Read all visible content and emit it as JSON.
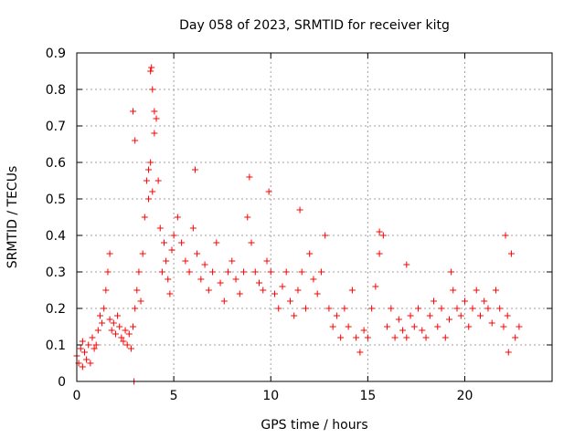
{
  "chart_data": {
    "type": "scatter",
    "title": "Day 058 of 2023, SRMTID for receiver kitg",
    "xlabel": "GPS time / hours",
    "ylabel": "SRMTID / TECUs",
    "xlim": [
      0,
      24.5
    ],
    "ylim": [
      0,
      0.9
    ],
    "xticks": [
      0,
      5,
      10,
      15,
      20
    ],
    "yticks": [
      0,
      0.1,
      0.2,
      0.3,
      0.4,
      0.5,
      0.6,
      0.7,
      0.8,
      0.9
    ],
    "xtick_labels": [
      "0",
      "5",
      "10",
      "15",
      "20"
    ],
    "ytick_labels": [
      "0",
      "0.1",
      "0.2",
      "0.3",
      "0.4",
      "0.5",
      "0.6",
      "0.7",
      "0.8",
      "0.9"
    ],
    "grid": true,
    "marker": "plus",
    "color": "#ff0000",
    "series": [
      {
        "name": "SRMTID",
        "x": [
          0.0,
          0.1,
          0.2,
          0.3,
          0.4,
          0.5,
          0.6,
          0.7,
          0.8,
          0.9,
          1.0,
          1.1,
          1.2,
          1.3,
          1.4,
          1.5,
          1.6,
          1.7,
          1.8,
          1.9,
          2.0,
          2.1,
          2.2,
          2.3,
          2.4,
          2.5,
          2.6,
          2.7,
          2.8,
          2.9,
          3.0,
          3.1,
          3.2,
          3.3,
          3.4,
          3.5,
          3.6,
          3.7,
          3.8,
          3.9,
          4.0,
          4.1,
          4.2,
          4.3,
          4.4,
          4.5,
          4.6,
          4.7,
          4.8,
          4.9,
          5.0,
          5.2,
          5.4,
          5.6,
          5.8,
          6.0,
          6.2,
          6.4,
          6.6,
          6.8,
          7.0,
          7.2,
          7.4,
          7.6,
          7.8,
          8.0,
          8.2,
          8.4,
          8.6,
          8.8,
          9.0,
          9.2,
          9.4,
          9.6,
          9.8,
          10.0,
          10.2,
          10.4,
          10.6,
          10.8,
          11.0,
          11.2,
          11.4,
          11.6,
          11.8,
          12.0,
          12.2,
          12.4,
          12.6,
          12.8,
          13.0,
          13.2,
          13.4,
          13.6,
          13.8,
          14.0,
          14.2,
          14.4,
          14.6,
          14.8,
          15.0,
          15.2,
          15.4,
          15.6,
          15.8,
          16.0,
          16.2,
          16.4,
          16.6,
          16.8,
          17.0,
          17.2,
          17.4,
          17.6,
          17.8,
          18.0,
          18.2,
          18.4,
          18.6,
          18.8,
          19.0,
          19.2,
          19.4,
          19.6,
          19.8,
          20.0,
          20.2,
          20.4,
          20.6,
          20.8,
          21.0,
          21.2,
          21.4,
          21.6,
          21.8,
          22.0,
          22.2,
          22.4,
          22.6,
          22.8,
          2.9,
          3.0,
          3.7,
          3.8,
          3.9,
          4.0,
          3.85,
          8.9,
          9.9,
          15.6,
          22.1,
          22.25,
          0.3,
          1.7,
          6.1,
          11.5,
          17.0,
          19.3,
          2.95
        ],
        "y": [
          0.07,
          0.05,
          0.09,
          0.04,
          0.08,
          0.06,
          0.1,
          0.05,
          0.12,
          0.09,
          0.1,
          0.14,
          0.18,
          0.16,
          0.2,
          0.25,
          0.3,
          0.17,
          0.14,
          0.16,
          0.13,
          0.18,
          0.15,
          0.12,
          0.11,
          0.14,
          0.1,
          0.13,
          0.09,
          0.15,
          0.2,
          0.25,
          0.3,
          0.22,
          0.35,
          0.45,
          0.55,
          0.5,
          0.6,
          0.52,
          0.68,
          0.72,
          0.55,
          0.42,
          0.3,
          0.38,
          0.33,
          0.28,
          0.24,
          0.36,
          0.4,
          0.45,
          0.38,
          0.33,
          0.3,
          0.42,
          0.35,
          0.28,
          0.32,
          0.25,
          0.3,
          0.38,
          0.27,
          0.22,
          0.3,
          0.33,
          0.28,
          0.24,
          0.3,
          0.45,
          0.38,
          0.3,
          0.27,
          0.25,
          0.33,
          0.3,
          0.24,
          0.2,
          0.26,
          0.3,
          0.22,
          0.18,
          0.25,
          0.3,
          0.2,
          0.35,
          0.28,
          0.24,
          0.3,
          0.4,
          0.2,
          0.15,
          0.18,
          0.12,
          0.2,
          0.15,
          0.25,
          0.12,
          0.08,
          0.14,
          0.12,
          0.2,
          0.26,
          0.35,
          0.4,
          0.15,
          0.2,
          0.12,
          0.17,
          0.14,
          0.12,
          0.18,
          0.15,
          0.2,
          0.14,
          0.12,
          0.18,
          0.22,
          0.15,
          0.2,
          0.12,
          0.17,
          0.25,
          0.2,
          0.18,
          0.22,
          0.15,
          0.2,
          0.25,
          0.18,
          0.22,
          0.2,
          0.16,
          0.25,
          0.2,
          0.15,
          0.18,
          0.35,
          0.12,
          0.15,
          0.74,
          0.66,
          0.58,
          0.85,
          0.8,
          0.74,
          0.86,
          0.56,
          0.52,
          0.41,
          0.4,
          0.08,
          0.11,
          0.35,
          0.58,
          0.47,
          0.32,
          0.3,
          0.0
        ]
      }
    ]
  }
}
